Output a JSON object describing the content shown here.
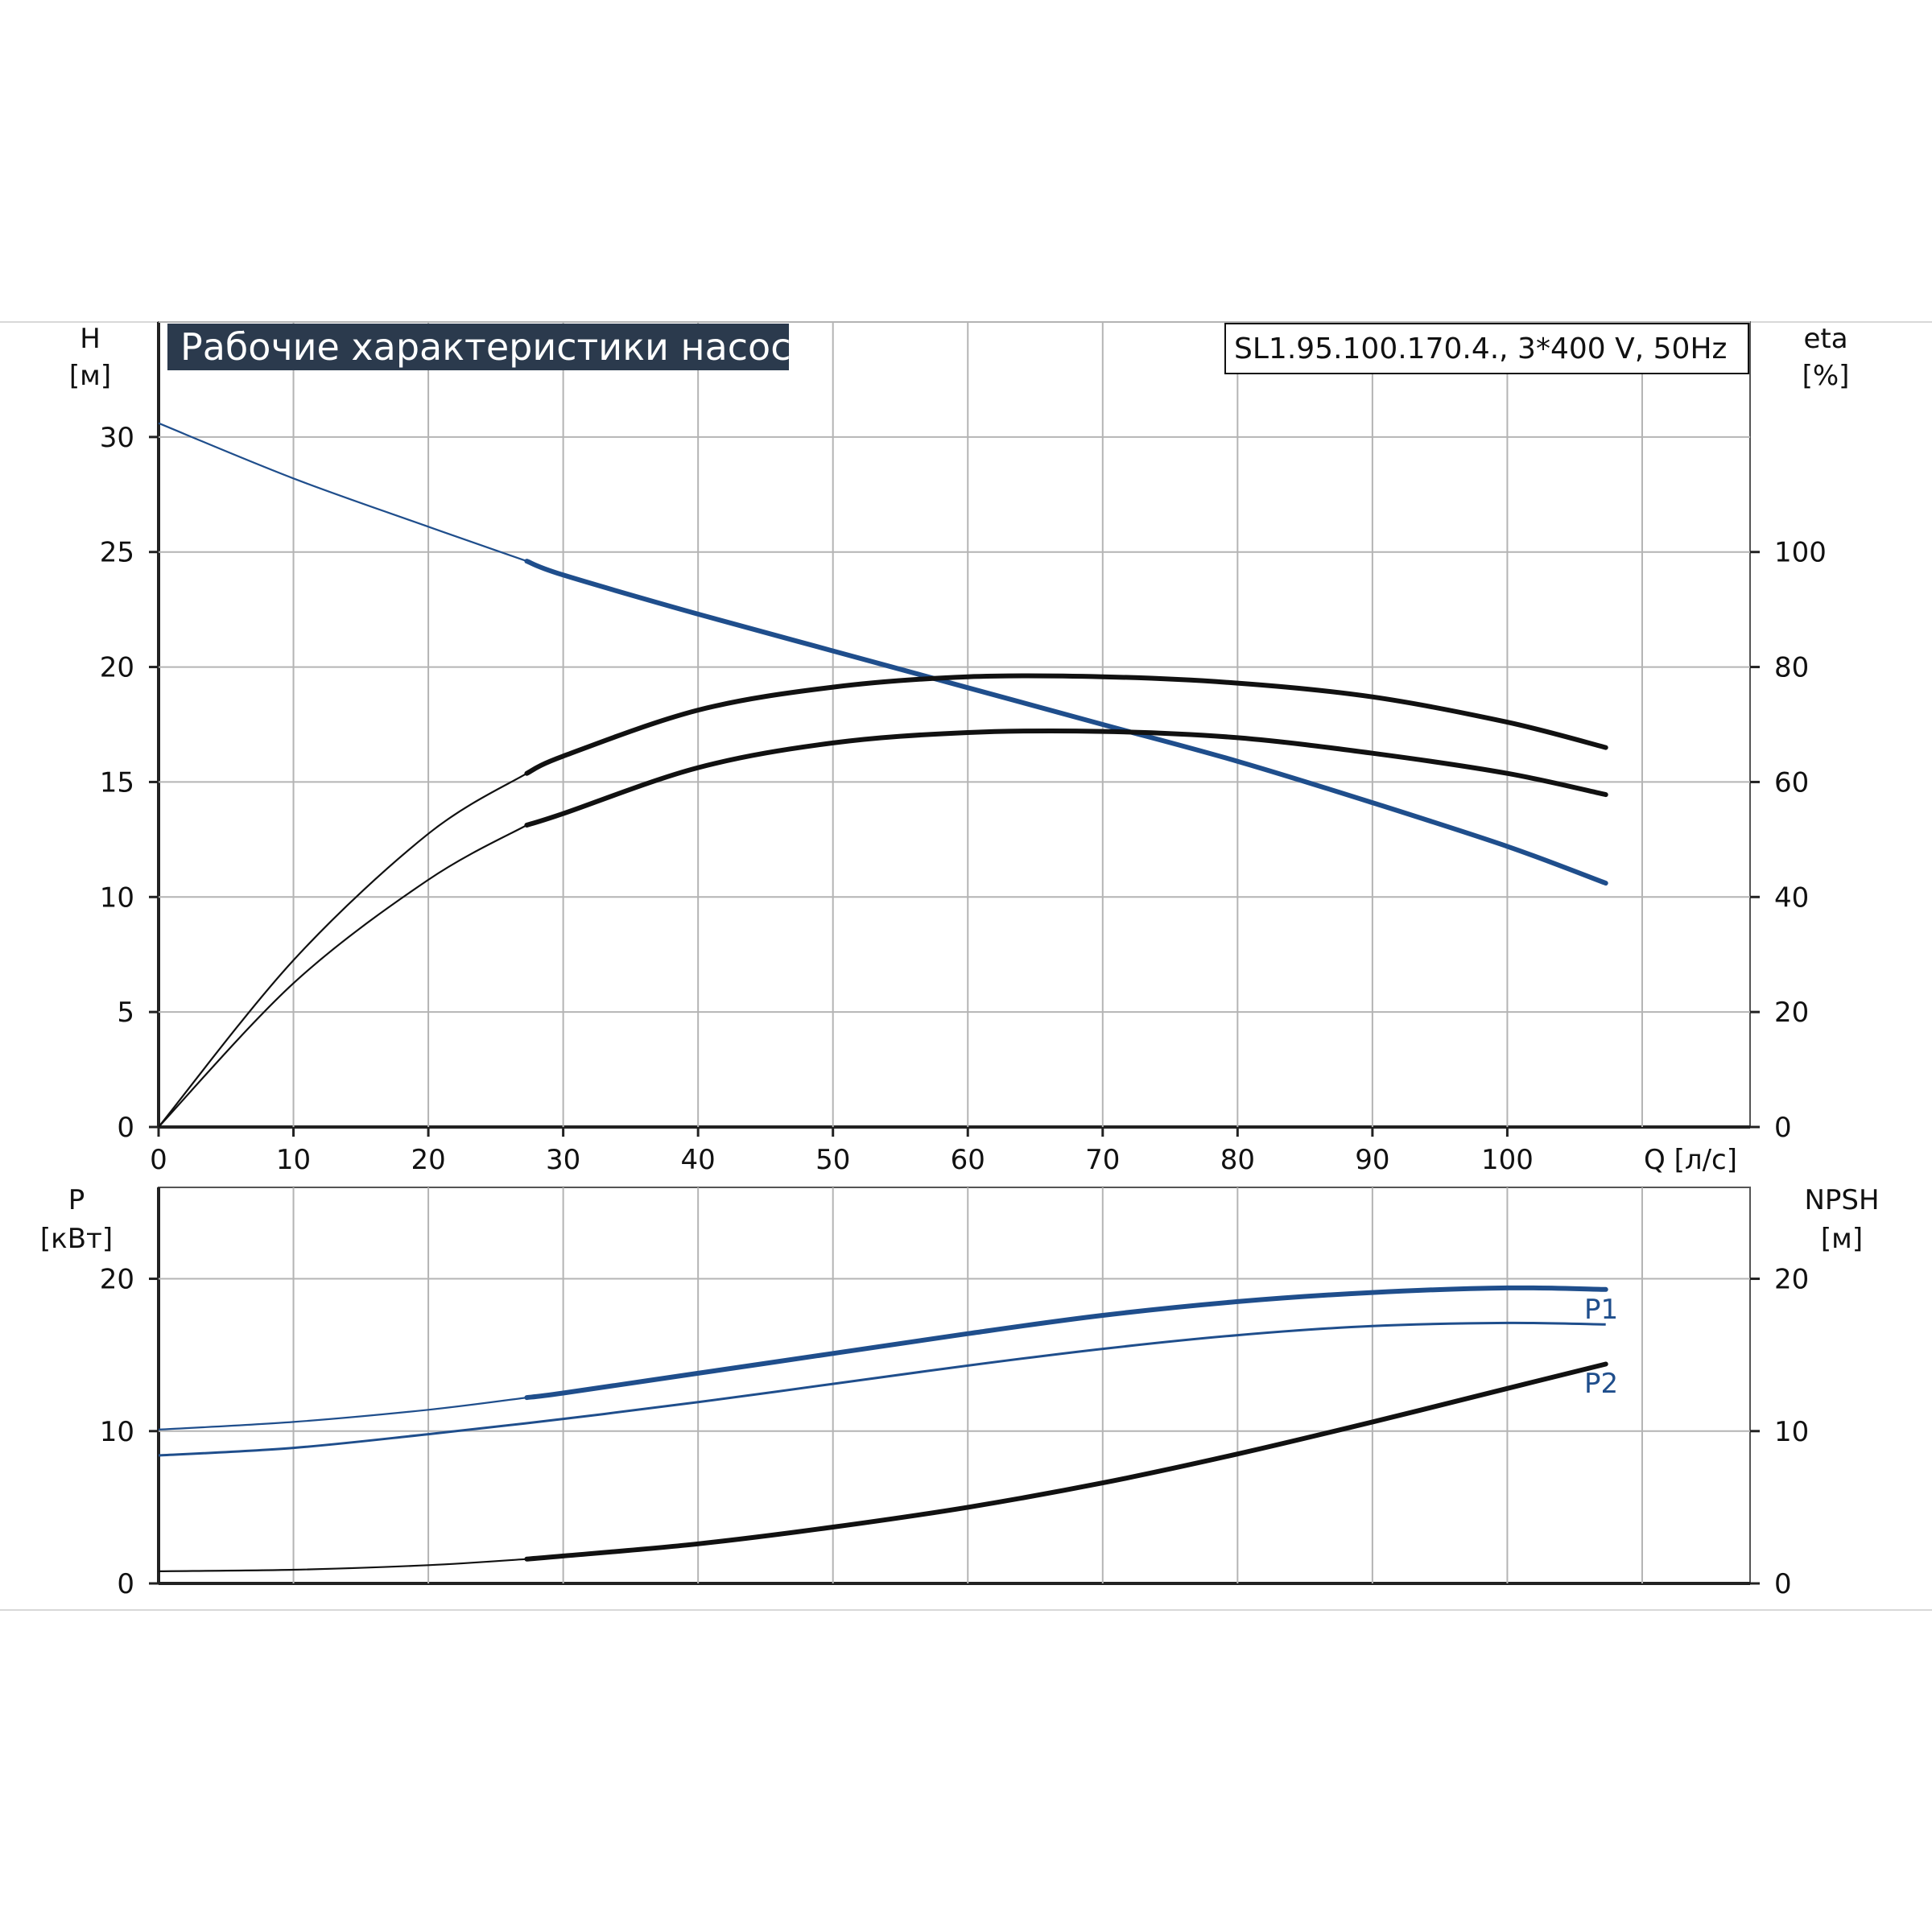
{
  "title": "Рабочие характеристики насоса",
  "model": "SL1.95.100.170.4., 3*400 V, 50Hz",
  "colors": {
    "blue": "#1f4e8c",
    "black": "#111111",
    "grid": "#b4b4b4",
    "title_bg": "#2b3a4d"
  },
  "chart_data": [
    {
      "type": "line",
      "x_label": "Q [л/с]",
      "left_axis": {
        "label": "H",
        "unit": "[м]",
        "range": [
          0,
          35
        ],
        "ticks": [
          0,
          5,
          10,
          15,
          20,
          25,
          30
        ]
      },
      "right_axis": {
        "label": "eta",
        "unit": "[%]",
        "range": [
          0,
          140
        ],
        "ticks": [
          0,
          20,
          40,
          60,
          80,
          100
        ]
      },
      "x_range": [
        0,
        118
      ],
      "x_ticks": [
        0,
        10,
        20,
        30,
        40,
        50,
        60,
        70,
        80,
        90,
        100
      ],
      "grid": true,
      "series": [
        {
          "axis": "left",
          "color": "#1f4e8c",
          "thin_x": [
            0,
            10,
            20,
            27.3
          ],
          "thin_y": [
            30.6,
            28.2,
            26.1,
            24.6
          ],
          "x": [
            27.3,
            30,
            40,
            50,
            60,
            70,
            80,
            90,
            100,
            107.3
          ],
          "y": [
            24.6,
            24.0,
            22.3,
            20.7,
            19.1,
            17.5,
            15.9,
            14.1,
            12.2,
            10.6
          ]
        },
        {
          "axis": "right",
          "color": "#111111",
          "thin_x": [
            0,
            10,
            20,
            27.3
          ],
          "thin_y": [
            0,
            29,
            51,
            61.5
          ],
          "x": [
            27.3,
            30,
            40,
            50,
            60,
            70,
            80,
            90,
            100,
            107.3
          ],
          "y": [
            61.5,
            64.5,
            72.5,
            76.5,
            78.3,
            78.3,
            77.2,
            74.8,
            70.4,
            66.0
          ]
        },
        {
          "axis": "right",
          "color": "#111111",
          "thin_x": [
            0,
            10,
            20,
            27.3
          ],
          "thin_y": [
            0,
            25,
            43,
            52.5
          ],
          "x": [
            27.3,
            30,
            40,
            50,
            60,
            70,
            80,
            90,
            100,
            107.3
          ],
          "y": [
            52.5,
            54.5,
            62.5,
            66.8,
            68.6,
            68.8,
            67.7,
            65.0,
            61.5,
            57.8
          ]
        }
      ]
    },
    {
      "type": "line",
      "left_axis": {
        "label": "P",
        "unit": "[кВт]",
        "range": [
          0,
          26
        ],
        "ticks": [
          0,
          10,
          20
        ]
      },
      "right_axis": {
        "label": "NPSH",
        "unit": "[м]",
        "range": [
          0,
          26
        ],
        "ticks": [
          0,
          10,
          20
        ]
      },
      "x_range": [
        0,
        118
      ],
      "x_ticks": [
        0,
        10,
        20,
        30,
        40,
        50,
        60,
        70,
        80,
        90,
        100
      ],
      "grid": true,
      "series": [
        {
          "name": "P1",
          "axis": "left",
          "color": "#1f4e8c",
          "thin_x": [
            0,
            10,
            20,
            27.3
          ],
          "thin_y": [
            10.1,
            10.6,
            11.4,
            12.2
          ],
          "x": [
            27.3,
            30,
            40,
            50,
            60,
            70,
            80,
            90,
            100,
            107.3
          ],
          "y": [
            12.2,
            12.5,
            13.8,
            15.1,
            16.4,
            17.6,
            18.5,
            19.1,
            19.4,
            19.3
          ]
        },
        {
          "name": "P2",
          "axis": "left",
          "color": "#1f4e8c",
          "x": [
            0,
            10,
            20,
            30,
            40,
            50,
            60,
            70,
            80,
            90,
            100,
            107.3
          ],
          "y": [
            8.4,
            8.9,
            9.8,
            10.8,
            11.9,
            13.1,
            14.3,
            15.4,
            16.3,
            16.9,
            17.1,
            17.0
          ]
        },
        {
          "axis": "right",
          "color": "#111111",
          "thin_x": [
            0,
            10,
            20,
            27.3
          ],
          "thin_y": [
            0.8,
            0.9,
            1.2,
            1.6
          ],
          "x": [
            27.3,
            30,
            40,
            50,
            60,
            70,
            80,
            90,
            100,
            107.3
          ],
          "y": [
            1.6,
            1.8,
            2.6,
            3.7,
            5.0,
            6.6,
            8.5,
            10.6,
            12.8,
            14.4
          ]
        }
      ]
    }
  ]
}
